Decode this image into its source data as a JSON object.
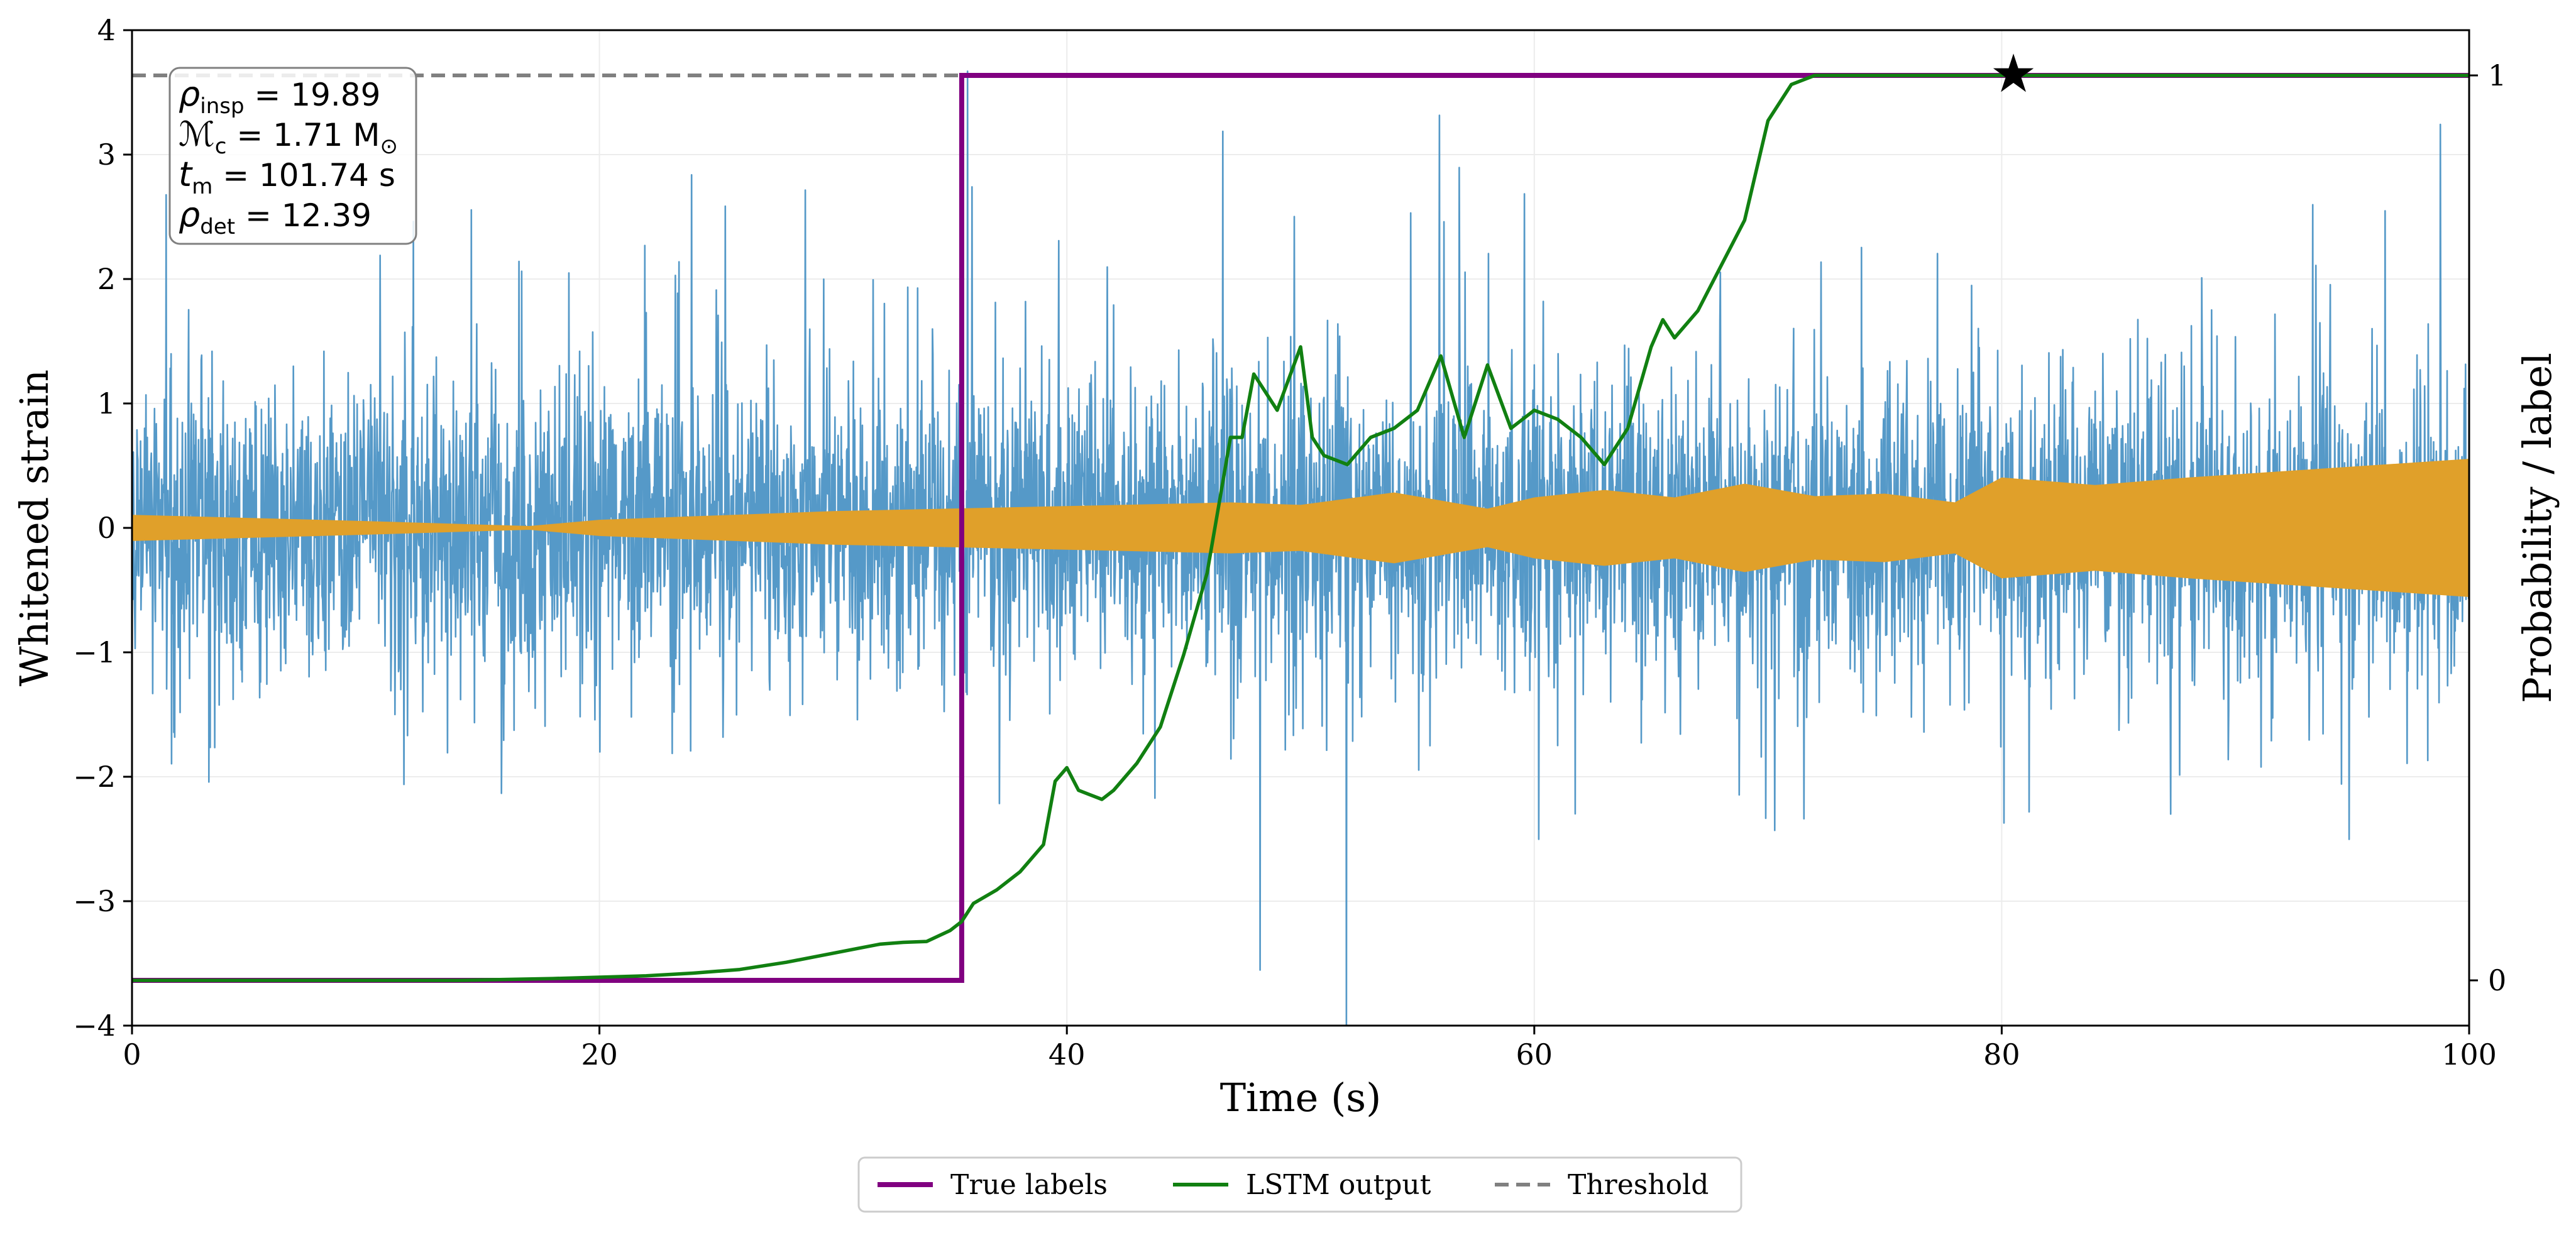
{
  "chart_data": {
    "type": "line",
    "xlabel": "Time (s)",
    "ylabel_left": "Whitened strain",
    "ylabel_right": "Probability / label",
    "xlim": [
      0,
      100
    ],
    "ylim_left": [
      -4,
      4
    ],
    "ylim_right": [
      -0.05,
      1.05
    ],
    "x_ticks": [
      0,
      20,
      40,
      60,
      80,
      100
    ],
    "x_tick_labels": [
      "0",
      "20",
      "40",
      "60",
      "80",
      "100"
    ],
    "y_left_ticks": [
      -4,
      -3,
      -2,
      -1,
      0,
      1,
      2,
      3,
      4
    ],
    "y_left_tick_labels": [
      "−4",
      "−3",
      "−2",
      "−1",
      "0",
      "1",
      "2",
      "3",
      "4"
    ],
    "y_right_ticks": [
      0,
      1
    ],
    "y_right_tick_labels": [
      "0",
      "1"
    ],
    "grid": true,
    "annotation": {
      "lines": [
        {
          "sym": "ρ",
          "sub": "insp",
          "rest": " = 19.89"
        },
        {
          "sym": "ℳ",
          "sub": "c",
          "rest": " = 1.71 M",
          "sub2": "⊙"
        },
        {
          "sym": "t",
          "sub": "m",
          "rest": " = 101.74 s"
        },
        {
          "sym": "ρ",
          "sub": "det",
          "rest": " = 12.39"
        }
      ]
    },
    "colors": {
      "strain": "#5599c8",
      "template": "#e0a02a",
      "true_labels": "#800080",
      "lstm": "#118011",
      "threshold": "#808080"
    },
    "series": [
      {
        "name": "Whitened strain",
        "kind": "noise",
        "axis": "left",
        "typical_amplitude": 1.2,
        "peak_max": 3.9,
        "peak_min": -4.0
      },
      {
        "name": "Signal template",
        "kind": "envelope",
        "axis": "left",
        "envelope": [
          [
            0,
            0.1
          ],
          [
            10,
            0.05
          ],
          [
            17,
            0.01
          ],
          [
            20,
            0.06
          ],
          [
            30,
            0.13
          ],
          [
            40,
            0.17
          ],
          [
            47,
            0.2
          ],
          [
            50,
            0.18
          ],
          [
            54,
            0.28
          ],
          [
            58,
            0.15
          ],
          [
            60,
            0.24
          ],
          [
            63,
            0.3
          ],
          [
            66,
            0.24
          ],
          [
            69,
            0.35
          ],
          [
            72,
            0.25
          ],
          [
            75,
            0.27
          ],
          [
            78,
            0.2
          ],
          [
            80,
            0.4
          ],
          [
            84,
            0.34
          ],
          [
            88,
            0.4
          ],
          [
            92,
            0.45
          ],
          [
            96,
            0.5
          ],
          [
            100,
            0.55
          ]
        ]
      },
      {
        "name": "True labels",
        "kind": "step",
        "axis": "right",
        "x": [
          0,
          35.5,
          35.5,
          100
        ],
        "y": [
          0,
          0,
          1,
          1
        ]
      },
      {
        "name": "LSTM output",
        "kind": "line",
        "axis": "right",
        "x": [
          0,
          14,
          18,
          22,
          24,
          26,
          28,
          30,
          31,
          32,
          33,
          34,
          35,
          35.5,
          36,
          37,
          38,
          39,
          39.5,
          40,
          40.5,
          41,
          41.5,
          42,
          43,
          44,
          45,
          46,
          47,
          47.5,
          48,
          48.5,
          49,
          50,
          50.5,
          51,
          52,
          53,
          54,
          55,
          56,
          57,
          58,
          59,
          60,
          61,
          62,
          63,
          64,
          65,
          65.5,
          66,
          67,
          68,
          69,
          70,
          71,
          72,
          74,
          80.5,
          100
        ],
        "y": [
          0,
          0,
          0.002,
          0.005,
          0.008,
          0.012,
          0.02,
          0.03,
          0.035,
          0.04,
          0.042,
          0.043,
          0.055,
          0.065,
          0.085,
          0.1,
          0.12,
          0.15,
          0.22,
          0.235,
          0.21,
          0.205,
          0.2,
          0.21,
          0.24,
          0.28,
          0.36,
          0.45,
          0.6,
          0.6,
          0.67,
          0.65,
          0.63,
          0.7,
          0.6,
          0.58,
          0.57,
          0.6,
          0.61,
          0.63,
          0.69,
          0.6,
          0.68,
          0.61,
          0.63,
          0.62,
          0.6,
          0.57,
          0.61,
          0.7,
          0.73,
          0.71,
          0.74,
          0.79,
          0.84,
          0.95,
          0.99,
          1.0,
          1.0,
          1.0,
          1.0
        ]
      },
      {
        "name": "Threshold",
        "kind": "hline",
        "axis": "right",
        "y": 1.0
      }
    ],
    "marker": {
      "name": "detection star",
      "x": 80.5,
      "y": 1.0,
      "axis": "right",
      "symbol": "★"
    },
    "legend": {
      "placement": "bottom-center",
      "entries": [
        {
          "label": "True labels",
          "style": "solid",
          "series": "true_labels"
        },
        {
          "label": "LSTM output",
          "style": "solid",
          "series": "lstm"
        },
        {
          "label": "Threshold",
          "style": "dashed",
          "series": "threshold"
        }
      ]
    }
  }
}
